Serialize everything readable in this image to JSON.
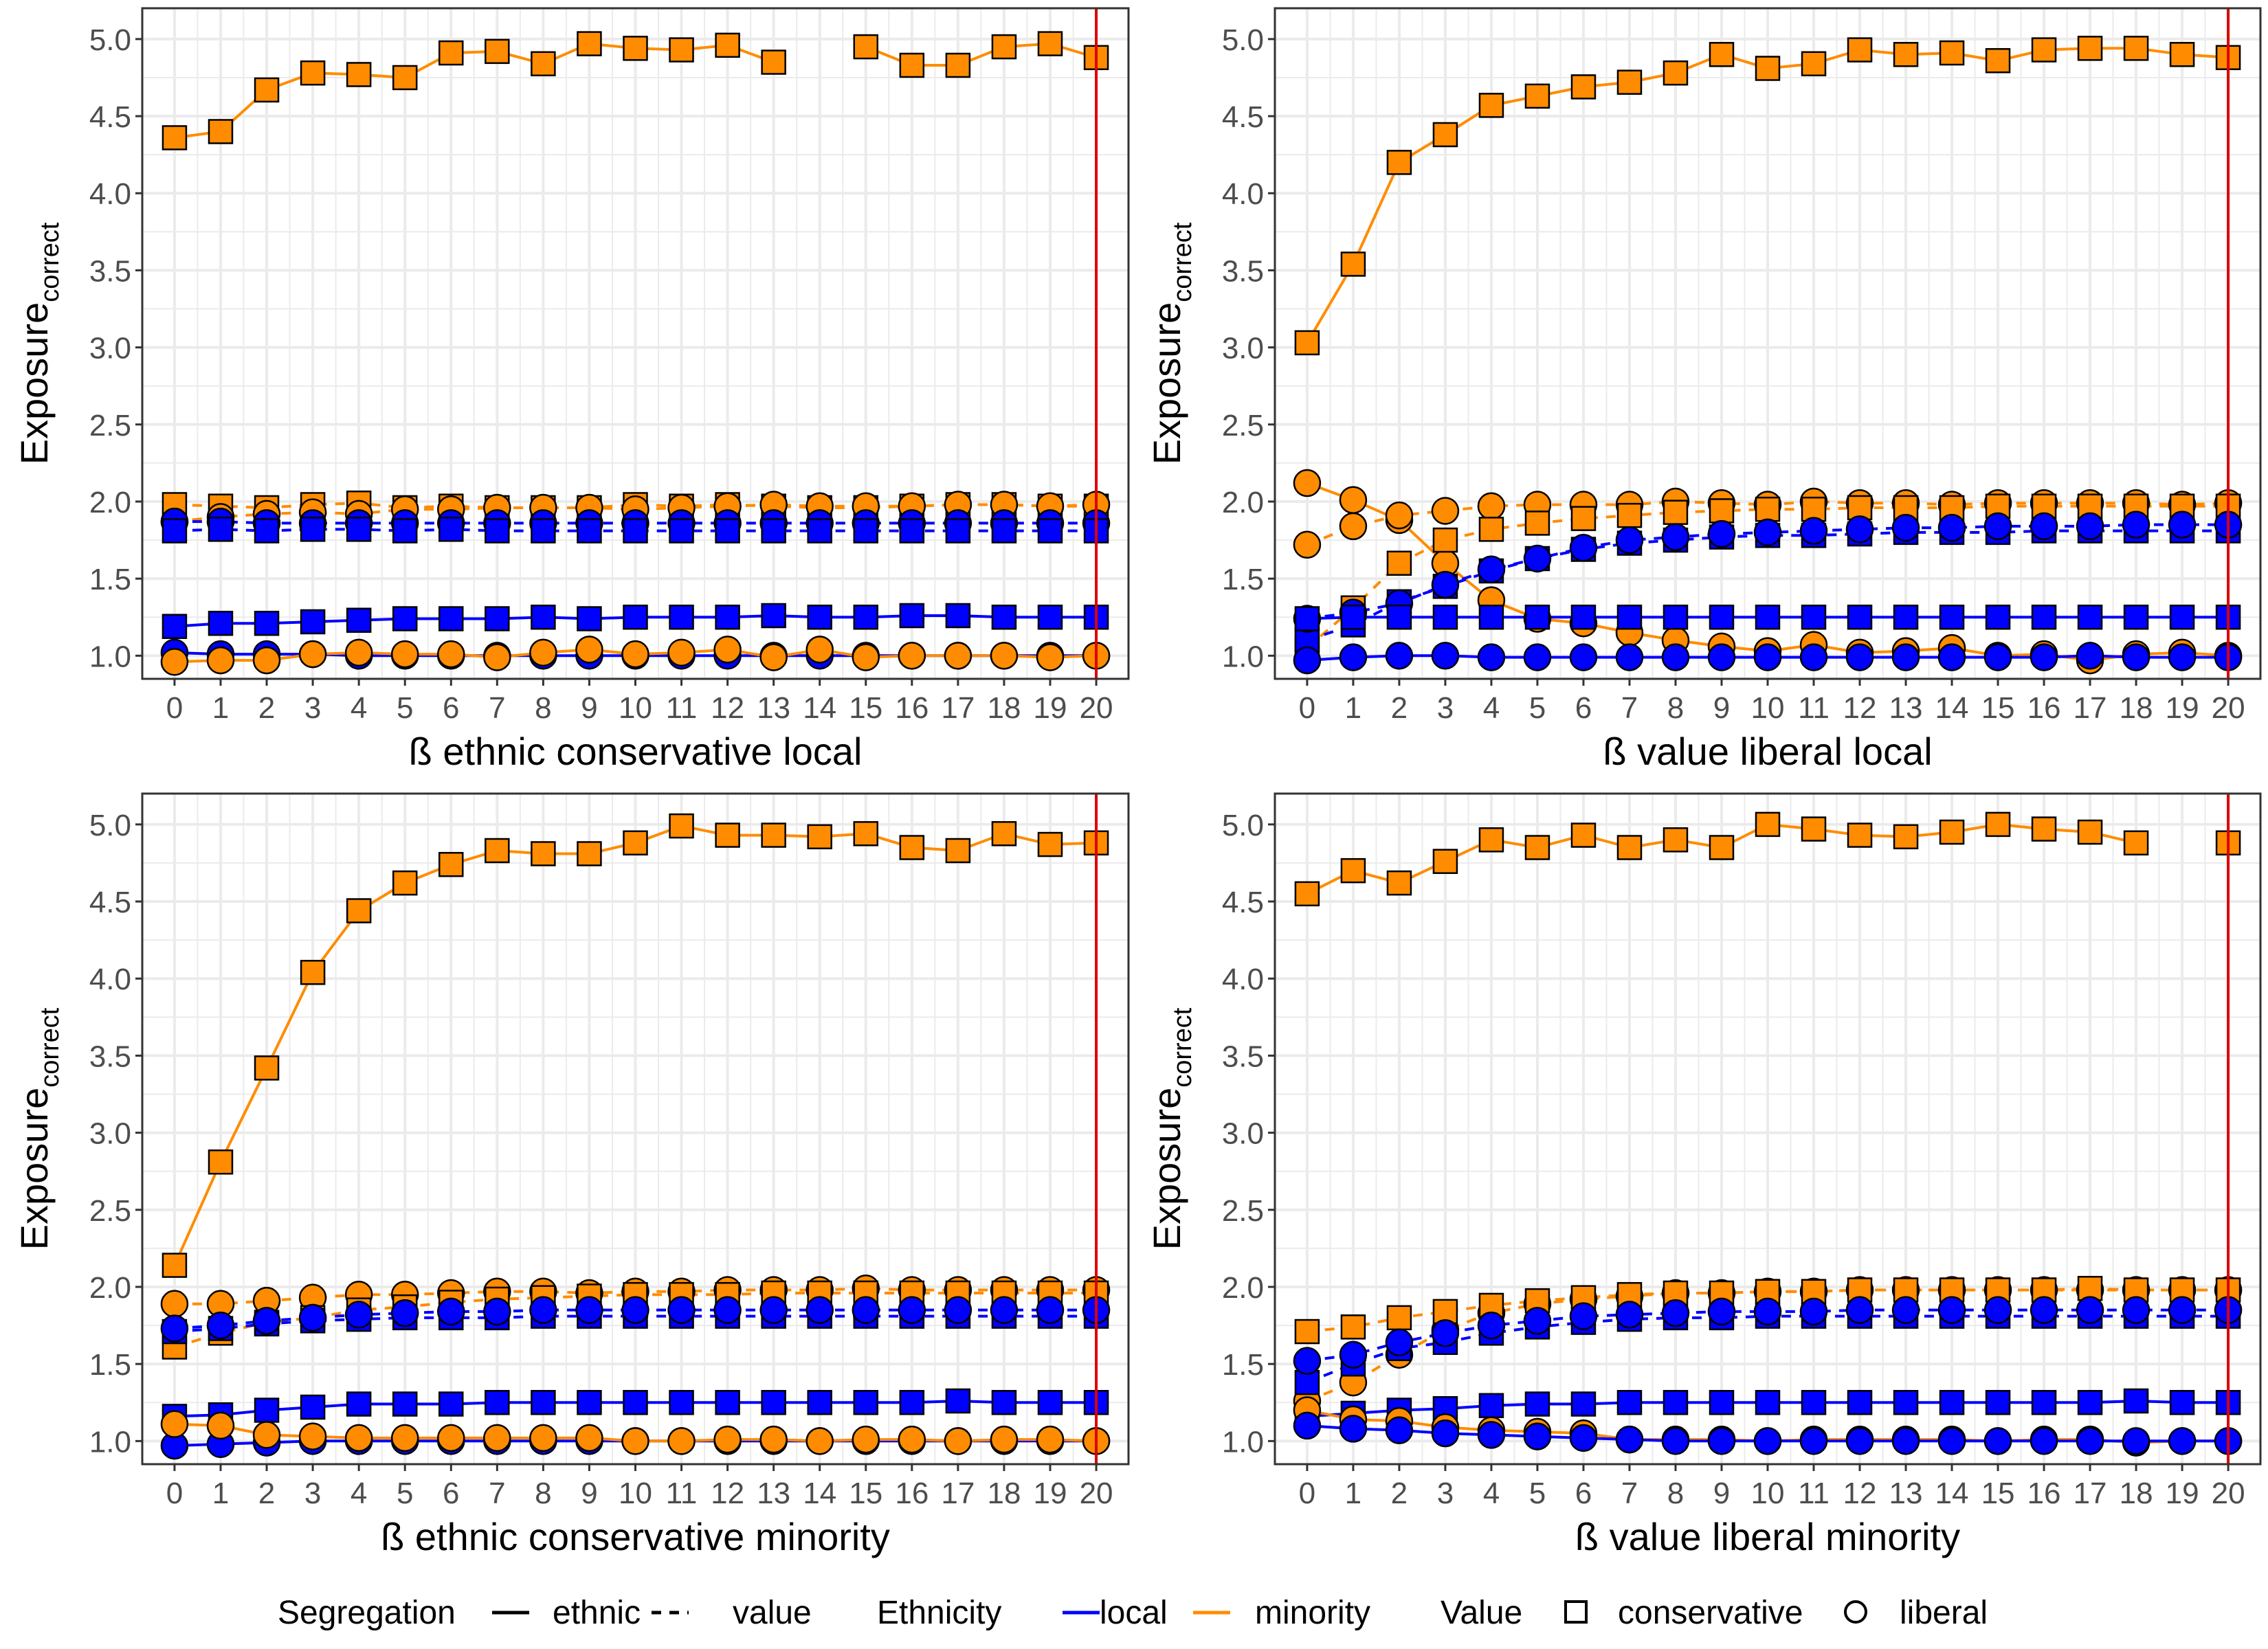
{
  "colors": {
    "local": "#0000ff",
    "minority": "#ff8c00",
    "reference_line": "#dd0000",
    "grid": "#ebebeb",
    "panel_border": "#333333",
    "point_stroke": "#000000"
  },
  "y_axis_label": {
    "main": "Exposure",
    "subscript": "correct"
  },
  "legend": {
    "position": "bottom",
    "segregation": {
      "title": "Segregation",
      "items": [
        {
          "label": "ethnic",
          "linestyle": "solid"
        },
        {
          "label": "value",
          "linestyle": "dashed"
        }
      ]
    },
    "ethnicity": {
      "title": "Ethnicity",
      "items": [
        {
          "label": "local",
          "color": "#0000ff"
        },
        {
          "label": "minority",
          "color": "#ff8c00"
        }
      ]
    },
    "value": {
      "title": "Value",
      "items": [
        {
          "label": "conservative",
          "shape": "square"
        },
        {
          "label": "liberal",
          "shape": "circle"
        }
      ]
    }
  },
  "chart_data": [
    {
      "type": "line",
      "xlabel": "ß ethnic conservative local",
      "ylabel": "Exposurecorrect",
      "x": [
        0,
        1,
        2,
        3,
        4,
        5,
        6,
        7,
        8,
        9,
        10,
        11,
        12,
        13,
        14,
        15,
        16,
        17,
        18,
        19,
        20
      ],
      "xlim": [
        0,
        20
      ],
      "ylim": [
        1.0,
        5.0
      ],
      "grid": true,
      "yticks": [
        "1.0",
        "1.5",
        "2.0",
        "2.5",
        "3.0",
        "3.5",
        "4.0",
        "4.5",
        "5.0"
      ],
      "reference_line_x": 20,
      "series": [
        {
          "name": "ethnic / minority / conservative",
          "values": [
            4.36,
            4.4,
            4.67,
            4.78,
            4.77,
            4.75,
            4.91,
            4.92,
            4.84,
            4.97,
            4.94,
            4.93,
            4.96,
            4.85,
            null,
            4.95,
            4.83,
            4.83,
            4.95,
            4.97,
            4.88
          ]
        },
        {
          "name": "value / minority / conservative",
          "values": [
            1.98,
            1.97,
            1.96,
            1.98,
            1.99,
            1.96,
            1.97,
            1.96,
            1.96,
            1.96,
            1.98,
            1.97,
            1.98,
            1.97,
            1.96,
            1.96,
            1.97,
            1.98,
            1.98,
            1.97,
            1.97
          ]
        },
        {
          "name": "value / minority / liberal",
          "values": [
            1.87,
            1.9,
            1.92,
            1.93,
            1.92,
            1.95,
            1.95,
            1.96,
            1.96,
            1.96,
            1.95,
            1.96,
            1.97,
            1.98,
            1.97,
            1.97,
            1.97,
            1.98,
            1.98,
            1.97,
            1.98
          ]
        },
        {
          "name": "value / local / liberal",
          "values": [
            1.87,
            1.87,
            1.86,
            1.86,
            1.86,
            1.86,
            1.86,
            1.86,
            1.86,
            1.86,
            1.86,
            1.86,
            1.86,
            1.86,
            1.86,
            1.86,
            1.86,
            1.86,
            1.86,
            1.86,
            1.86
          ]
        },
        {
          "name": "value / local / conservative",
          "values": [
            1.81,
            1.82,
            1.81,
            1.82,
            1.82,
            1.81,
            1.82,
            1.81,
            1.81,
            1.81,
            1.81,
            1.81,
            1.81,
            1.81,
            1.81,
            1.81,
            1.81,
            1.81,
            1.81,
            1.81,
            1.81
          ]
        },
        {
          "name": "ethnic / local / conservative",
          "values": [
            1.19,
            1.21,
            1.21,
            1.22,
            1.23,
            1.24,
            1.24,
            1.24,
            1.25,
            1.24,
            1.25,
            1.25,
            1.25,
            1.26,
            1.25,
            1.25,
            1.26,
            1.26,
            1.25,
            1.25,
            1.25
          ]
        },
        {
          "name": "ethnic / local / liberal",
          "values": [
            1.02,
            1.01,
            1.01,
            1.01,
            1.0,
            1.0,
            1.0,
            1.0,
            1.0,
            1.0,
            1.0,
            1.0,
            1.0,
            1.0,
            1.0,
            1.0,
            1.0,
            1.0,
            1.0,
            1.0,
            1.0
          ]
        },
        {
          "name": "ethnic / minority / liberal",
          "values": [
            0.96,
            0.97,
            0.97,
            1.01,
            1.02,
            1.01,
            1.01,
            0.99,
            1.02,
            1.04,
            1.01,
            1.02,
            1.04,
            0.99,
            1.04,
            0.99,
            1.0,
            1.0,
            1.0,
            0.99,
            1.0
          ]
        }
      ]
    },
    {
      "type": "line",
      "xlabel": "ß value liberal local",
      "ylabel": "Exposurecorrect",
      "x": [
        0,
        1,
        2,
        3,
        4,
        5,
        6,
        7,
        8,
        9,
        10,
        11,
        12,
        13,
        14,
        15,
        16,
        17,
        18,
        19,
        20
      ],
      "xlim": [
        0,
        20
      ],
      "ylim": [
        1.0,
        5.0
      ],
      "grid": true,
      "yticks": [
        "1.0",
        "1.5",
        "2.0",
        "2.5",
        "3.0",
        "3.5",
        "4.0",
        "4.5",
        "5.0"
      ],
      "reference_line_x": 20,
      "series": [
        {
          "name": "ethnic / minority / conservative",
          "values": [
            3.03,
            3.54,
            4.2,
            4.38,
            4.57,
            4.63,
            4.69,
            4.72,
            4.78,
            4.9,
            4.81,
            4.84,
            4.93,
            4.9,
            4.91,
            4.86,
            4.93,
            4.94,
            4.94,
            4.9,
            4.88
          ]
        },
        {
          "name": "ethnic / minority / liberal",
          "values": [
            2.12,
            2.01,
            1.88,
            1.6,
            1.36,
            1.24,
            1.21,
            1.15,
            1.1,
            1.06,
            1.03,
            1.07,
            1.02,
            1.03,
            1.05,
            1.0,
            1.01,
            0.97,
            1.01,
            1.02,
            1.0
          ]
        },
        {
          "name": "value / minority / liberal",
          "values": [
            1.72,
            1.84,
            1.91,
            1.94,
            1.97,
            1.98,
            1.98,
            1.98,
            2.0,
            1.99,
            1.98,
            2.0,
            1.99,
            1.99,
            1.98,
            1.99,
            1.99,
            1.99,
            1.99,
            1.98,
            1.99
          ]
        },
        {
          "name": "value / minority / conservative",
          "values": [
            1.05,
            1.31,
            1.6,
            1.75,
            1.82,
            1.86,
            1.89,
            1.91,
            1.93,
            1.94,
            1.95,
            1.95,
            1.96,
            1.96,
            1.96,
            1.97,
            1.97,
            1.97,
            1.97,
            1.97,
            1.97
          ]
        },
        {
          "name": "value / local / conservative",
          "values": [
            1.1,
            1.2,
            1.35,
            1.45,
            1.55,
            1.63,
            1.69,
            1.73,
            1.75,
            1.77,
            1.78,
            1.78,
            1.79,
            1.8,
            1.8,
            1.8,
            1.81,
            1.81,
            1.81,
            1.81,
            1.81
          ]
        },
        {
          "name": "value / local / liberal",
          "values": [
            1.24,
            1.28,
            1.34,
            1.46,
            1.56,
            1.63,
            1.7,
            1.75,
            1.77,
            1.79,
            1.8,
            1.81,
            1.82,
            1.83,
            1.83,
            1.84,
            1.84,
            1.84,
            1.85,
            1.85,
            1.85
          ]
        },
        {
          "name": "ethnic / local / conservative",
          "values": [
            1.24,
            1.25,
            1.25,
            1.25,
            1.25,
            1.25,
            1.25,
            1.25,
            1.25,
            1.25,
            1.25,
            1.25,
            1.25,
            1.25,
            1.25,
            1.25,
            1.25,
            1.25,
            1.25,
            1.25,
            1.25
          ]
        },
        {
          "name": "ethnic / local / liberal",
          "values": [
            0.97,
            0.99,
            1.0,
            1.0,
            0.99,
            0.99,
            0.99,
            0.99,
            0.99,
            0.99,
            0.99,
            0.99,
            0.99,
            0.99,
            0.99,
            0.99,
            0.99,
            1.0,
            0.99,
            0.99,
            0.99
          ]
        }
      ]
    },
    {
      "type": "line",
      "xlabel": "ß ethnic conservative minority",
      "ylabel": "Exposurecorrect",
      "x": [
        0,
        1,
        2,
        3,
        4,
        5,
        6,
        7,
        8,
        9,
        10,
        11,
        12,
        13,
        14,
        15,
        16,
        17,
        18,
        19,
        20
      ],
      "xlim": [
        0,
        20
      ],
      "ylim": [
        1.0,
        5.0
      ],
      "grid": true,
      "yticks": [
        "1.0",
        "1.5",
        "2.0",
        "2.5",
        "3.0",
        "3.5",
        "4.0",
        "4.5",
        "5.0"
      ],
      "reference_line_x": 20,
      "series": [
        {
          "name": "ethnic / minority / conservative",
          "values": [
            2.14,
            2.81,
            3.42,
            4.04,
            4.44,
            4.62,
            4.74,
            4.83,
            4.81,
            4.81,
            4.88,
            4.99,
            4.93,
            4.93,
            4.92,
            4.94,
            4.85,
            4.83,
            4.94,
            4.87,
            4.88
          ]
        },
        {
          "name": "value / minority / liberal",
          "values": [
            1.89,
            1.89,
            1.91,
            1.93,
            1.95,
            1.95,
            1.96,
            1.97,
            1.97,
            1.96,
            1.97,
            1.97,
            1.98,
            1.98,
            1.98,
            1.99,
            1.98,
            1.98,
            1.98,
            1.98,
            1.98
          ]
        },
        {
          "name": "value / minority / conservative",
          "values": [
            1.61,
            1.7,
            1.77,
            1.8,
            1.85,
            1.87,
            1.9,
            1.92,
            1.93,
            1.94,
            1.95,
            1.95,
            1.95,
            1.96,
            1.96,
            1.96,
            1.96,
            1.96,
            1.96,
            1.96,
            1.96
          ]
        },
        {
          "name": "value / local / conservative",
          "values": [
            1.71,
            1.73,
            1.76,
            1.78,
            1.79,
            1.8,
            1.8,
            1.8,
            1.81,
            1.81,
            1.81,
            1.81,
            1.81,
            1.81,
            1.81,
            1.81,
            1.81,
            1.81,
            1.81,
            1.81,
            1.81
          ]
        },
        {
          "name": "value / local / liberal",
          "values": [
            1.73,
            1.75,
            1.78,
            1.8,
            1.82,
            1.83,
            1.84,
            1.84,
            1.85,
            1.85,
            1.85,
            1.85,
            1.85,
            1.85,
            1.85,
            1.85,
            1.85,
            1.85,
            1.85,
            1.85,
            1.85
          ]
        },
        {
          "name": "ethnic / local / conservative",
          "values": [
            1.16,
            1.17,
            1.2,
            1.22,
            1.24,
            1.24,
            1.24,
            1.25,
            1.25,
            1.25,
            1.25,
            1.25,
            1.25,
            1.25,
            1.25,
            1.25,
            1.25,
            1.26,
            1.25,
            1.25,
            1.25
          ]
        },
        {
          "name": "ethnic / local / liberal",
          "values": [
            0.97,
            0.98,
            0.99,
            1.0,
            1.0,
            1.0,
            1.0,
            1.0,
            1.0,
            1.0,
            1.0,
            1.0,
            1.0,
            1.0,
            1.0,
            1.0,
            1.0,
            1.0,
            1.0,
            1.0,
            1.0
          ]
        },
        {
          "name": "ethnic / minority / liberal",
          "values": [
            1.11,
            1.1,
            1.04,
            1.03,
            1.02,
            1.02,
            1.02,
            1.02,
            1.02,
            1.02,
            1.0,
            1.0,
            1.01,
            1.01,
            1.0,
            1.01,
            1.01,
            1.0,
            1.01,
            1.01,
            1.0
          ]
        }
      ]
    },
    {
      "type": "line",
      "xlabel": "ß value liberal minority",
      "ylabel": "Exposurecorrect",
      "x": [
        0,
        1,
        2,
        3,
        4,
        5,
        6,
        7,
        8,
        9,
        10,
        11,
        12,
        13,
        14,
        15,
        16,
        17,
        18,
        19,
        20
      ],
      "xlim": [
        0,
        20
      ],
      "ylim": [
        1.0,
        5.0
      ],
      "grid": true,
      "yticks": [
        "1.0",
        "1.5",
        "2.0",
        "2.5",
        "3.0",
        "3.5",
        "4.0",
        "4.5",
        "5.0"
      ],
      "reference_line_x": 20,
      "series": [
        {
          "name": "ethnic / minority / conservative",
          "values": [
            4.55,
            4.7,
            4.62,
            4.76,
            4.9,
            4.85,
            4.93,
            4.85,
            4.9,
            4.85,
            5.0,
            4.97,
            4.93,
            4.92,
            4.95,
            5.0,
            4.97,
            4.95,
            4.88,
            null,
            4.88
          ]
        },
        {
          "name": "value / minority / liberal",
          "values": [
            1.26,
            1.38,
            1.56,
            1.72,
            1.83,
            1.89,
            1.92,
            1.94,
            1.96,
            1.96,
            1.97,
            1.97,
            1.98,
            1.98,
            1.98,
            1.98,
            1.98,
            1.98,
            1.98,
            1.98,
            1.98
          ]
        },
        {
          "name": "value / minority / conservative",
          "values": [
            1.71,
            1.74,
            1.8,
            1.84,
            1.88,
            1.91,
            1.93,
            1.95,
            1.96,
            1.96,
            1.97,
            1.97,
            1.98,
            1.98,
            1.98,
            1.98,
            1.98,
            1.99,
            1.98,
            1.98,
            1.98
          ]
        },
        {
          "name": "value / local / conservative",
          "values": [
            1.38,
            1.5,
            1.6,
            1.64,
            1.7,
            1.74,
            1.77,
            1.79,
            1.8,
            1.8,
            1.81,
            1.81,
            1.81,
            1.81,
            1.81,
            1.81,
            1.81,
            1.81,
            1.81,
            1.81,
            1.81
          ]
        },
        {
          "name": "value / local / liberal",
          "values": [
            1.52,
            1.56,
            1.64,
            1.7,
            1.75,
            1.78,
            1.81,
            1.82,
            1.83,
            1.84,
            1.84,
            1.84,
            1.85,
            1.85,
            1.85,
            1.85,
            1.85,
            1.85,
            1.85,
            1.85,
            1.85
          ]
        },
        {
          "name": "ethnic / local / conservative",
          "values": [
            1.16,
            1.18,
            1.2,
            1.21,
            1.23,
            1.24,
            1.24,
            1.25,
            1.25,
            1.25,
            1.25,
            1.25,
            1.25,
            1.25,
            1.25,
            1.25,
            1.25,
            1.25,
            1.26,
            1.25,
            1.25
          ]
        },
        {
          "name": "ethnic / minority / liberal",
          "values": [
            1.2,
            1.14,
            1.13,
            1.09,
            1.07,
            1.06,
            1.05,
            1.01,
            1.01,
            1.01,
            1.0,
            1.01,
            1.01,
            1.01,
            1.01,
            1.0,
            1.01,
            1.01,
            0.99,
            1.0,
            1.0
          ]
        },
        {
          "name": "ethnic / local / liberal",
          "values": [
            1.1,
            1.08,
            1.07,
            1.05,
            1.04,
            1.03,
            1.02,
            1.01,
            1.0,
            1.0,
            1.0,
            1.0,
            1.0,
            1.0,
            1.0,
            1.0,
            1.0,
            1.0,
            1.0,
            1.0,
            1.0
          ]
        }
      ]
    }
  ]
}
